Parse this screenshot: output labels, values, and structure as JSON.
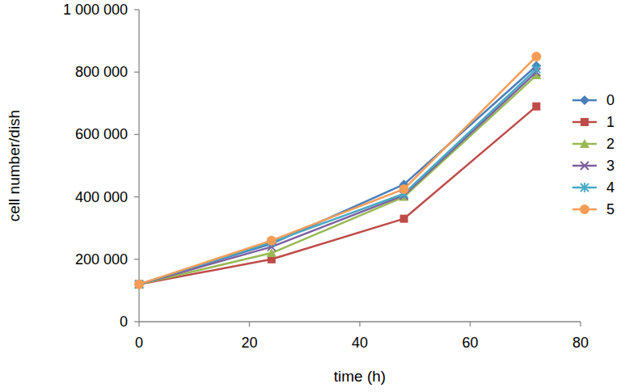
{
  "chart_data": {
    "type": "line",
    "x_label": "time (h)",
    "y_label": "cell number/dish",
    "x": [
      0,
      24,
      48,
      72
    ],
    "series": [
      {
        "name": "0",
        "color": "#4a7ebb",
        "marker": "diamond",
        "values": [
          120000,
          250000,
          440000,
          820000
        ]
      },
      {
        "name": "1",
        "color": "#be4b48",
        "marker": "square",
        "values": [
          120000,
          200000,
          330000,
          690000
        ]
      },
      {
        "name": "2",
        "color": "#98b954",
        "marker": "triangle",
        "values": [
          120000,
          220000,
          400000,
          790000
        ]
      },
      {
        "name": "3",
        "color": "#7d60a0",
        "marker": "x",
        "values": [
          120000,
          240000,
          405000,
          800000
        ]
      },
      {
        "name": "4",
        "color": "#46aac5",
        "marker": "star",
        "values": [
          120000,
          255000,
          410000,
          810000
        ]
      },
      {
        "name": "5",
        "color": "#f59d56",
        "marker": "circle",
        "values": [
          120000,
          260000,
          425000,
          850000
        ]
      }
    ],
    "xlim": [
      0,
      80
    ],
    "xticks": [
      0,
      20,
      40,
      60,
      80
    ],
    "ylim": [
      0,
      1000000
    ],
    "yticks": [
      0,
      {
        "value": 200000,
        "label": "200 000"
      },
      {
        "value": 400000,
        "label": "400 000"
      },
      {
        "value": 600000,
        "label": "600 000"
      },
      {
        "value": 800000,
        "label": "800 000"
      },
      {
        "value": 1000000,
        "label": "1 000 000"
      }
    ],
    "grid": false,
    "legend": "right"
  }
}
